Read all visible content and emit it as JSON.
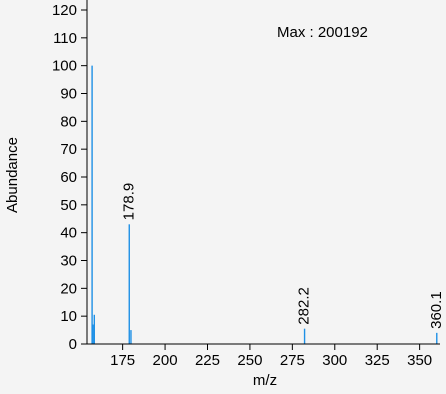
{
  "chart_data": {
    "type": "bar",
    "title": "",
    "annotation": "Max : 200192",
    "xlabel": "m/z",
    "ylabel": "Abundance",
    "xlim": [
      154,
      362
    ],
    "ylim": [
      0,
      120
    ],
    "x_ticks": [
      "175",
      "200",
      "225",
      "250",
      "275",
      "300",
      "325",
      "350"
    ],
    "y_ticks": [
      "0",
      "10",
      "20",
      "30",
      "40",
      "50",
      "60",
      "70",
      "80",
      "90",
      "100",
      "110",
      "120"
    ],
    "series_color": "#1e90e6",
    "peaks": [
      {
        "x": 157,
        "y": 100
      },
      {
        "x": 157.6,
        "y": 7
      },
      {
        "x": 158.3,
        "y": 10.5
      },
      {
        "x": 178.9,
        "y": 43,
        "label": "178.9"
      },
      {
        "x": 179.9,
        "y": 5
      },
      {
        "x": 282.2,
        "y": 5.5,
        "label": "282.2"
      },
      {
        "x": 360.1,
        "y": 4,
        "label": "360.1"
      }
    ]
  }
}
